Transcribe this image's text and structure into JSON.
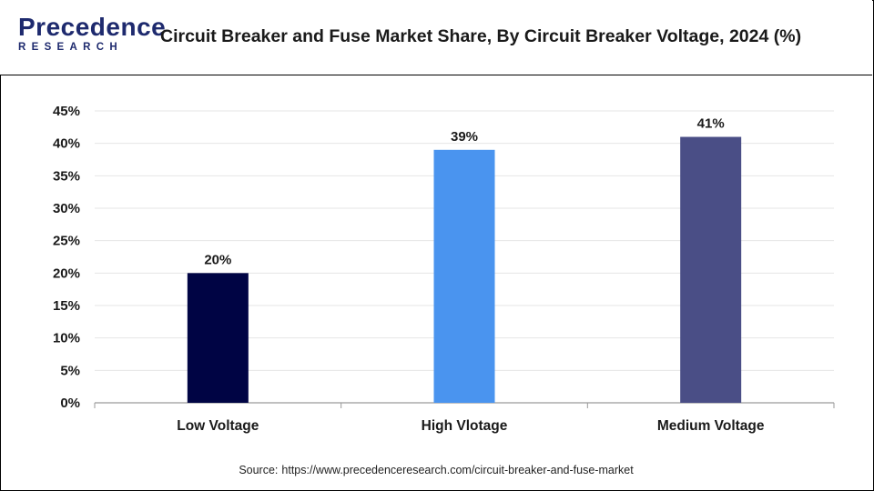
{
  "header": {
    "logo_top": "Precedence",
    "logo_bottom": "RESEARCH",
    "title": "Circuit Breaker and Fuse Market Share, By Circuit Breaker Voltage, 2024 (%)"
  },
  "source": {
    "label": "Source:",
    "url": "https://www.precedenceresearch.com/circuit-breaker-and-fuse-market"
  },
  "colors": {
    "brand": "#1e2a6e",
    "grid": "#e6e6e6",
    "axis": "#9a9a9a"
  },
  "chart_data": {
    "type": "bar",
    "title": "Circuit Breaker and Fuse Market Share, By Circuit Breaker Voltage, 2024 (%)",
    "xlabel": "",
    "ylabel": "",
    "categories": [
      "Low Voltage",
      "High Vlotage",
      "Medium Voltage"
    ],
    "values": [
      20,
      39,
      41
    ],
    "value_labels": [
      "20%",
      "39%",
      "41%"
    ],
    "bar_colors": [
      "#000444",
      "#4a94ef",
      "#4a4e86"
    ],
    "ylim": [
      0,
      45
    ],
    "yticks": [
      0,
      5,
      10,
      15,
      20,
      25,
      30,
      35,
      40,
      45
    ],
    "ytick_labels": [
      "0%",
      "5%",
      "10%",
      "15%",
      "20%",
      "25%",
      "30%",
      "35%",
      "40%",
      "45%"
    ],
    "grid": true,
    "legend": "none"
  }
}
